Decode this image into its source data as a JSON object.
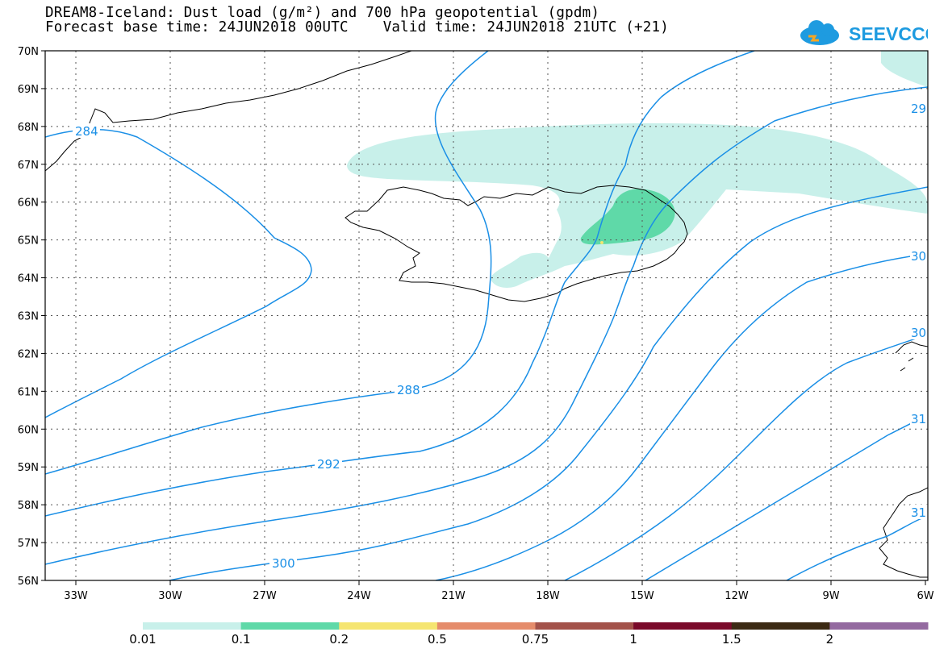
{
  "header": {
    "title": "DREAM8-Iceland: Dust load (g/m²) and 700 hPa geopotential (gpdm)",
    "forecast_line": "Forecast base time: 24JUN2018 00UTC    Valid time: 24JUN2018 21UTC (+21)"
  },
  "logo": {
    "text": "SEEVCCC",
    "icon": "cloud-icon",
    "color": "#1e9be0"
  },
  "map": {
    "lon_ticks": [
      "33W",
      "30W",
      "27W",
      "24W",
      "21W",
      "18W",
      "15W",
      "12W",
      "9W",
      "6W"
    ],
    "lat_ticks": [
      "70N",
      "69N",
      "68N",
      "67N",
      "66N",
      "65N",
      "64N",
      "63N",
      "62N",
      "61N",
      "60N",
      "59N",
      "58N",
      "57N",
      "56N"
    ],
    "contour_labels": [
      "284",
      "288",
      "292",
      "300",
      "29",
      "30",
      "30",
      "31",
      "31"
    ],
    "contour_color": "#1a8fe6",
    "grid": "dotted"
  },
  "colorbar": {
    "levels": [
      "0.01",
      "0.1",
      "0.2",
      "0.5",
      "0.75",
      "1",
      "1.5",
      "2"
    ],
    "colors": [
      "#c8f0ea",
      "#5fd9a8",
      "#f5e571",
      "#e58c6b",
      "#a3524a",
      "#7a0a2a",
      "#3c2a14",
      "#946aa0"
    ]
  }
}
